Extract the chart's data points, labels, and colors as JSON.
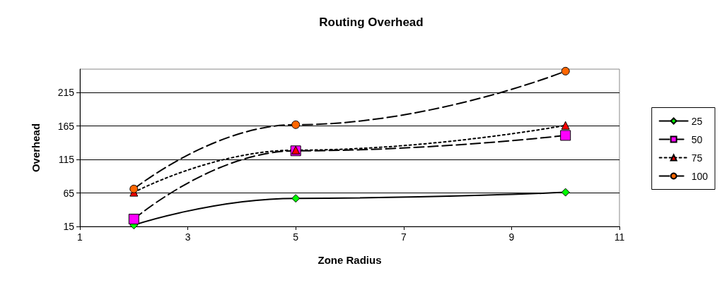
{
  "chart_data": {
    "type": "line",
    "title": "Routing Overhead",
    "xlabel": "Zone Radius",
    "ylabel": "Overhead",
    "x": [
      2,
      5,
      10
    ],
    "series": [
      {
        "name": "25",
        "color": "#00ff00",
        "marker": "diamond",
        "line_style": "solid",
        "values": [
          17,
          57,
          66
        ]
      },
      {
        "name": "50",
        "color": "#ff00ff",
        "marker": "square",
        "line_style": "dashed",
        "values": [
          26,
          128,
          151
        ]
      },
      {
        "name": "75",
        "color": "#ff0000",
        "marker": "triangle",
        "line_style": "dotted",
        "values": [
          66,
          129,
          166
        ]
      },
      {
        "name": "100",
        "color": "#ff6600",
        "marker": "circle",
        "line_style": "dashed",
        "values": [
          71,
          167,
          247
        ]
      }
    ],
    "xlim": [
      1,
      11
    ],
    "xticks": [
      1,
      3,
      5,
      7,
      9,
      11
    ],
    "ylim": [
      15,
      250
    ],
    "yticks": [
      15,
      65,
      115,
      165,
      215
    ],
    "grid": "y",
    "legend": "right"
  }
}
